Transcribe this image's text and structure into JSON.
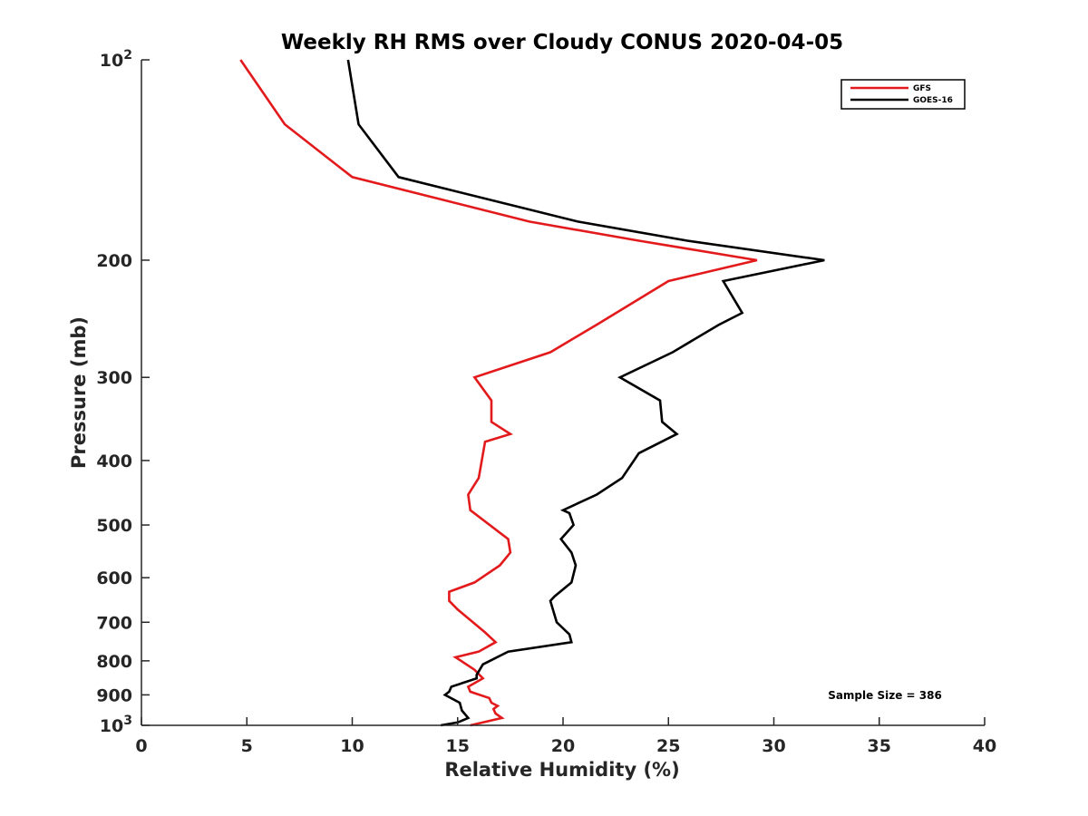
{
  "chart_data": {
    "type": "line",
    "title": "Weekly RH RMS over Cloudy CONUS 2020-04-05",
    "xlabel": "Relative Humidity (%)",
    "ylabel": "Pressure (mb)",
    "xlim": [
      0,
      40
    ],
    "ylim": [
      100,
      1000
    ],
    "y_scale": "log",
    "y_reversed": true,
    "grid": false,
    "legend_position": "top-right",
    "x_ticks": [
      "0",
      "5",
      "10",
      "15",
      "20",
      "25",
      "30",
      "35",
      "40"
    ],
    "x_tick_values": [
      0,
      5,
      10,
      15,
      20,
      25,
      30,
      35,
      40
    ],
    "y_ticks": [
      {
        "value": 100,
        "base": "10",
        "exp": "2"
      },
      {
        "value": 200,
        "label": "200"
      },
      {
        "value": 300,
        "label": "300"
      },
      {
        "value": 400,
        "label": "400"
      },
      {
        "value": 500,
        "label": "500"
      },
      {
        "value": 600,
        "label": "600"
      },
      {
        "value": 700,
        "label": "700"
      },
      {
        "value": 800,
        "label": "800"
      },
      {
        "value": 900,
        "label": "900"
      },
      {
        "value": 1000,
        "base": "10",
        "exp": "3"
      }
    ],
    "annotation": "Sample Size = 386",
    "series": [
      {
        "name": "GFS",
        "color": "#e31a1c",
        "points": [
          [
            4.7,
            100
          ],
          [
            6.8,
            125
          ],
          [
            10.0,
            150
          ],
          [
            18.4,
            175
          ],
          [
            23.6,
            187
          ],
          [
            29.2,
            200
          ],
          [
            25.0,
            215
          ],
          [
            21.6,
            250
          ],
          [
            19.4,
            275
          ],
          [
            15.8,
            300
          ],
          [
            16.6,
            325
          ],
          [
            16.6,
            350
          ],
          [
            17.5,
            365
          ],
          [
            16.3,
            375
          ],
          [
            16.0,
            425
          ],
          [
            15.5,
            450
          ],
          [
            15.6,
            475
          ],
          [
            17.4,
            525
          ],
          [
            17.5,
            550
          ],
          [
            17.0,
            575
          ],
          [
            15.8,
            610
          ],
          [
            14.6,
            630
          ],
          [
            14.6,
            650
          ],
          [
            15.0,
            670
          ],
          [
            16.3,
            725
          ],
          [
            16.8,
            750
          ],
          [
            16.0,
            775
          ],
          [
            14.9,
            790
          ],
          [
            15.8,
            825
          ],
          [
            16.2,
            850
          ],
          [
            15.5,
            875
          ],
          [
            15.6,
            890
          ],
          [
            16.5,
            910
          ],
          [
            16.6,
            925
          ],
          [
            16.9,
            935
          ],
          [
            16.7,
            945
          ],
          [
            16.8,
            960
          ],
          [
            17.1,
            975
          ],
          [
            15.6,
            1000
          ]
        ]
      },
      {
        "name": "GOES-16",
        "color": "#000000",
        "points": [
          [
            9.8,
            100
          ],
          [
            10.3,
            125
          ],
          [
            12.2,
            150
          ],
          [
            20.7,
            175
          ],
          [
            25.9,
            187
          ],
          [
            32.4,
            200
          ],
          [
            27.6,
            215
          ],
          [
            28.5,
            240
          ],
          [
            27.4,
            250
          ],
          [
            25.2,
            275
          ],
          [
            22.7,
            300
          ],
          [
            24.6,
            325
          ],
          [
            24.7,
            350
          ],
          [
            25.4,
            365
          ],
          [
            23.6,
            390
          ],
          [
            22.8,
            425
          ],
          [
            21.6,
            450
          ],
          [
            20.0,
            475
          ],
          [
            20.3,
            480
          ],
          [
            20.5,
            500
          ],
          [
            19.9,
            525
          ],
          [
            20.4,
            550
          ],
          [
            20.6,
            575
          ],
          [
            20.4,
            610
          ],
          [
            19.6,
            640
          ],
          [
            19.4,
            650
          ],
          [
            19.7,
            700
          ],
          [
            20.3,
            730
          ],
          [
            20.4,
            750
          ],
          [
            17.4,
            775
          ],
          [
            16.2,
            810
          ],
          [
            15.9,
            840
          ],
          [
            15.9,
            850
          ],
          [
            14.7,
            875
          ],
          [
            14.6,
            890
          ],
          [
            14.4,
            900
          ],
          [
            15.1,
            925
          ],
          [
            15.2,
            950
          ],
          [
            15.5,
            975
          ],
          [
            15.0,
            990
          ],
          [
            14.2,
            1000
          ]
        ]
      }
    ]
  }
}
